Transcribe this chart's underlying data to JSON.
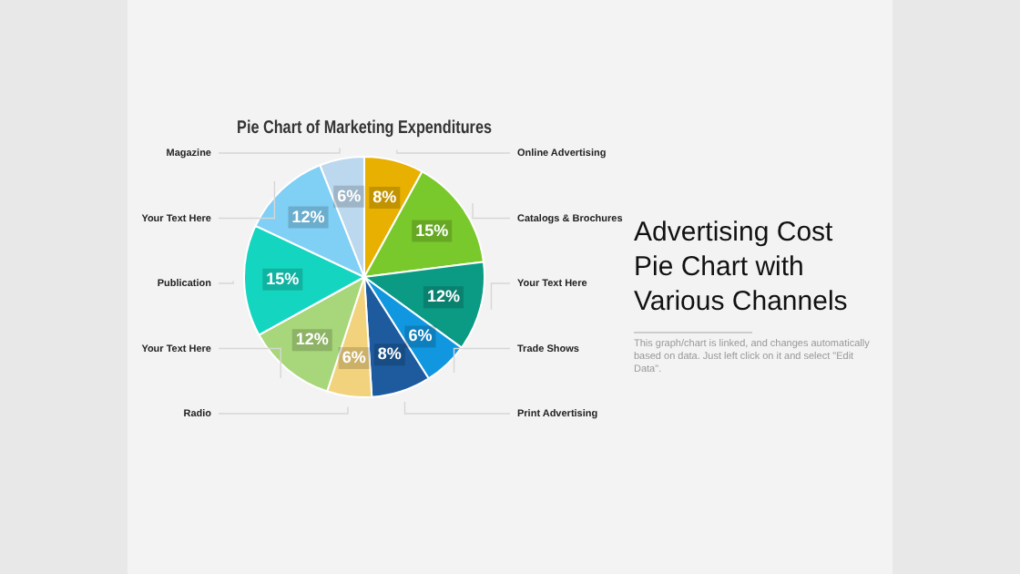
{
  "chart_data": {
    "type": "pie",
    "title": "Pie Chart of Marketing Expenditures",
    "categories": [
      "Online Advertising",
      "Catalogs & Brochures",
      "Your Text Here",
      "Trade Shows",
      "Print Advertising",
      "Radio",
      "Your Text Here",
      "Publication",
      "Your Text Here",
      "Magazine"
    ],
    "values": [
      8,
      15,
      12,
      6,
      8,
      6,
      12,
      15,
      12,
      6
    ],
    "value_labels": [
      "8%",
      "15%",
      "12%",
      "6%",
      "8%",
      "6%",
      "12%",
      "15%",
      "12%",
      "6%"
    ],
    "colors": [
      "#e8b000",
      "#7ac92c",
      "#0b9a84",
      "#1197e0",
      "#1d5b9e",
      "#f2d27c",
      "#a8d67a",
      "#14d6c0",
      "#80cff5",
      "#bcd8ee"
    ],
    "legend": false,
    "annotations": [
      "Advertising Cost Pie Chart with Various Channels",
      "This graph/chart is linked, and changes automatically based on data. Just left click on it and select \"Edit Data\"."
    ]
  }
}
